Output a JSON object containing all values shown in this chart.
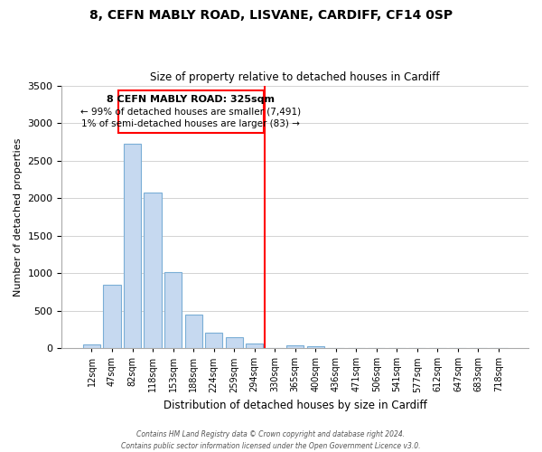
{
  "title1": "8, CEFN MABLY ROAD, LISVANE, CARDIFF, CF14 0SP",
  "title2": "Size of property relative to detached houses in Cardiff",
  "xlabel": "Distribution of detached houses by size in Cardiff",
  "ylabel": "Number of detached properties",
  "bar_labels": [
    "12sqm",
    "47sqm",
    "82sqm",
    "118sqm",
    "153sqm",
    "188sqm",
    "224sqm",
    "259sqm",
    "294sqm",
    "330sqm",
    "365sqm",
    "400sqm",
    "436sqm",
    "471sqm",
    "506sqm",
    "541sqm",
    "577sqm",
    "612sqm",
    "647sqm",
    "683sqm",
    "718sqm"
  ],
  "bar_values": [
    50,
    850,
    2725,
    2075,
    1010,
    450,
    210,
    150,
    60,
    0,
    35,
    20,
    0,
    0,
    0,
    0,
    0,
    0,
    0,
    0,
    0
  ],
  "bar_color": "#c6d9f0",
  "bar_edge_color": "#7aaed6",
  "vline_color": "red",
  "ylim": [
    0,
    3500
  ],
  "yticks": [
    0,
    500,
    1000,
    1500,
    2000,
    2500,
    3000,
    3500
  ],
  "annotation_title": "8 CEFN MABLY ROAD: 325sqm",
  "annotation_line1": "← 99% of detached houses are smaller (7,491)",
  "annotation_line2": "1% of semi-detached houses are larger (83) →",
  "footnote1": "Contains HM Land Registry data © Crown copyright and database right 2024.",
  "footnote2": "Contains public sector information licensed under the Open Government Licence v3.0.",
  "background_color": "#ffffff",
  "grid_color": "#cccccc"
}
